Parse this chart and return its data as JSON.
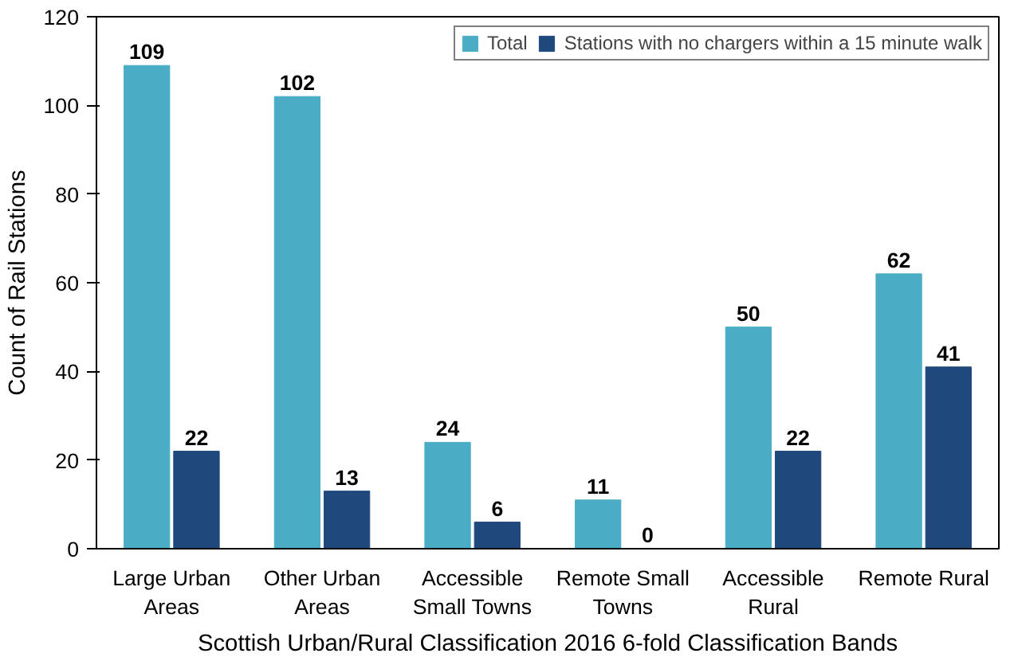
{
  "chart_data": {
    "type": "bar",
    "xlabel": "Scottish Urban/Rural Classification 2016 6-fold Classification Bands",
    "ylabel": "Count of Rail Stations",
    "categories": [
      "Large Urban\nAreas",
      "Other Urban\nAreas",
      "Accessible\nSmall Towns",
      "Remote Small\nTowns",
      "Accessible\nRural",
      "Remote Rural"
    ],
    "series": [
      {
        "name": "Total",
        "color": "#4bacc6",
        "values": [
          109,
          102,
          24,
          11,
          50,
          62
        ]
      },
      {
        "name": "Stations with no chargers within a 15 minute walk",
        "color": "#1f497d",
        "values": [
          22,
          13,
          6,
          0,
          22,
          41
        ]
      }
    ],
    "ylim": [
      0,
      120
    ],
    "yticks": [
      0,
      20,
      40,
      60,
      80,
      100,
      120
    ],
    "grid": false,
    "legend": "top right",
    "data_labels": true
  }
}
